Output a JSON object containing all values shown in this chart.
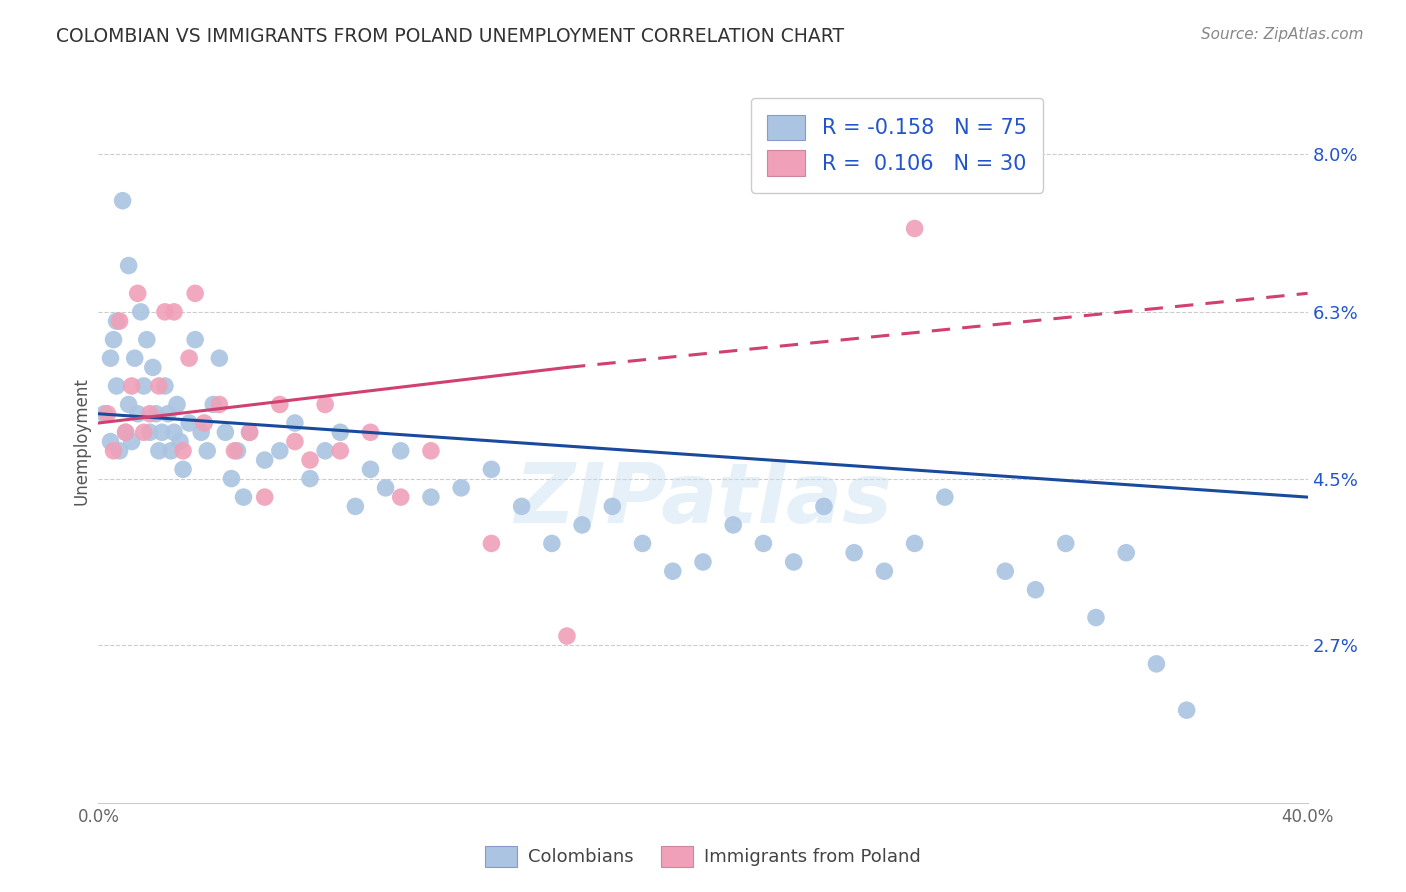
{
  "title": "COLOMBIAN VS IMMIGRANTS FROM POLAND UNEMPLOYMENT CORRELATION CHART",
  "source": "Source: ZipAtlas.com",
  "ylabel": "Unemployment",
  "yticks": [
    0.027,
    0.045,
    0.063,
    0.08
  ],
  "ytick_labels": [
    "2.7%",
    "4.5%",
    "6.3%",
    "8.0%"
  ],
  "xmin": 0.0,
  "xmax": 0.4,
  "ymin": 0.01,
  "ymax": 0.088,
  "colombians_R": -0.158,
  "colombians_N": 75,
  "poland_R": 0.106,
  "poland_N": 30,
  "blue_color": "#aac4e2",
  "pink_color": "#f0a0b8",
  "blue_line_color": "#1a4a9e",
  "pink_line_color": "#d04070",
  "watermark": "ZIPatlas",
  "colombians_x": [
    0.002,
    0.004,
    0.004,
    0.005,
    0.006,
    0.006,
    0.007,
    0.008,
    0.009,
    0.01,
    0.01,
    0.011,
    0.012,
    0.013,
    0.014,
    0.015,
    0.016,
    0.017,
    0.018,
    0.019,
    0.02,
    0.021,
    0.022,
    0.023,
    0.024,
    0.025,
    0.026,
    0.027,
    0.028,
    0.03,
    0.032,
    0.034,
    0.036,
    0.038,
    0.04,
    0.042,
    0.044,
    0.046,
    0.048,
    0.05,
    0.055,
    0.06,
    0.065,
    0.07,
    0.075,
    0.08,
    0.085,
    0.09,
    0.095,
    0.1,
    0.11,
    0.12,
    0.13,
    0.14,
    0.15,
    0.16,
    0.17,
    0.18,
    0.19,
    0.2,
    0.21,
    0.22,
    0.23,
    0.24,
    0.25,
    0.26,
    0.27,
    0.28,
    0.3,
    0.31,
    0.32,
    0.33,
    0.34,
    0.35,
    0.36
  ],
  "colombians_y": [
    0.052,
    0.049,
    0.058,
    0.06,
    0.055,
    0.062,
    0.048,
    0.075,
    0.05,
    0.068,
    0.053,
    0.049,
    0.058,
    0.052,
    0.063,
    0.055,
    0.06,
    0.05,
    0.057,
    0.052,
    0.048,
    0.05,
    0.055,
    0.052,
    0.048,
    0.05,
    0.053,
    0.049,
    0.046,
    0.051,
    0.06,
    0.05,
    0.048,
    0.053,
    0.058,
    0.05,
    0.045,
    0.048,
    0.043,
    0.05,
    0.047,
    0.048,
    0.051,
    0.045,
    0.048,
    0.05,
    0.042,
    0.046,
    0.044,
    0.048,
    0.043,
    0.044,
    0.046,
    0.042,
    0.038,
    0.04,
    0.042,
    0.038,
    0.035,
    0.036,
    0.04,
    0.038,
    0.036,
    0.042,
    0.037,
    0.035,
    0.038,
    0.043,
    0.035,
    0.033,
    0.038,
    0.03,
    0.037,
    0.025,
    0.02
  ],
  "poland_x": [
    0.003,
    0.005,
    0.007,
    0.009,
    0.011,
    0.013,
    0.015,
    0.017,
    0.02,
    0.022,
    0.025,
    0.028,
    0.03,
    0.032,
    0.035,
    0.04,
    0.045,
    0.05,
    0.055,
    0.06,
    0.065,
    0.07,
    0.075,
    0.08,
    0.09,
    0.1,
    0.11,
    0.13,
    0.155,
    0.27
  ],
  "poland_y": [
    0.052,
    0.048,
    0.062,
    0.05,
    0.055,
    0.065,
    0.05,
    0.052,
    0.055,
    0.063,
    0.063,
    0.048,
    0.058,
    0.065,
    0.051,
    0.053,
    0.048,
    0.05,
    0.043,
    0.053,
    0.049,
    0.047,
    0.053,
    0.048,
    0.05,
    0.043,
    0.048,
    0.038,
    0.028,
    0.072
  ]
}
